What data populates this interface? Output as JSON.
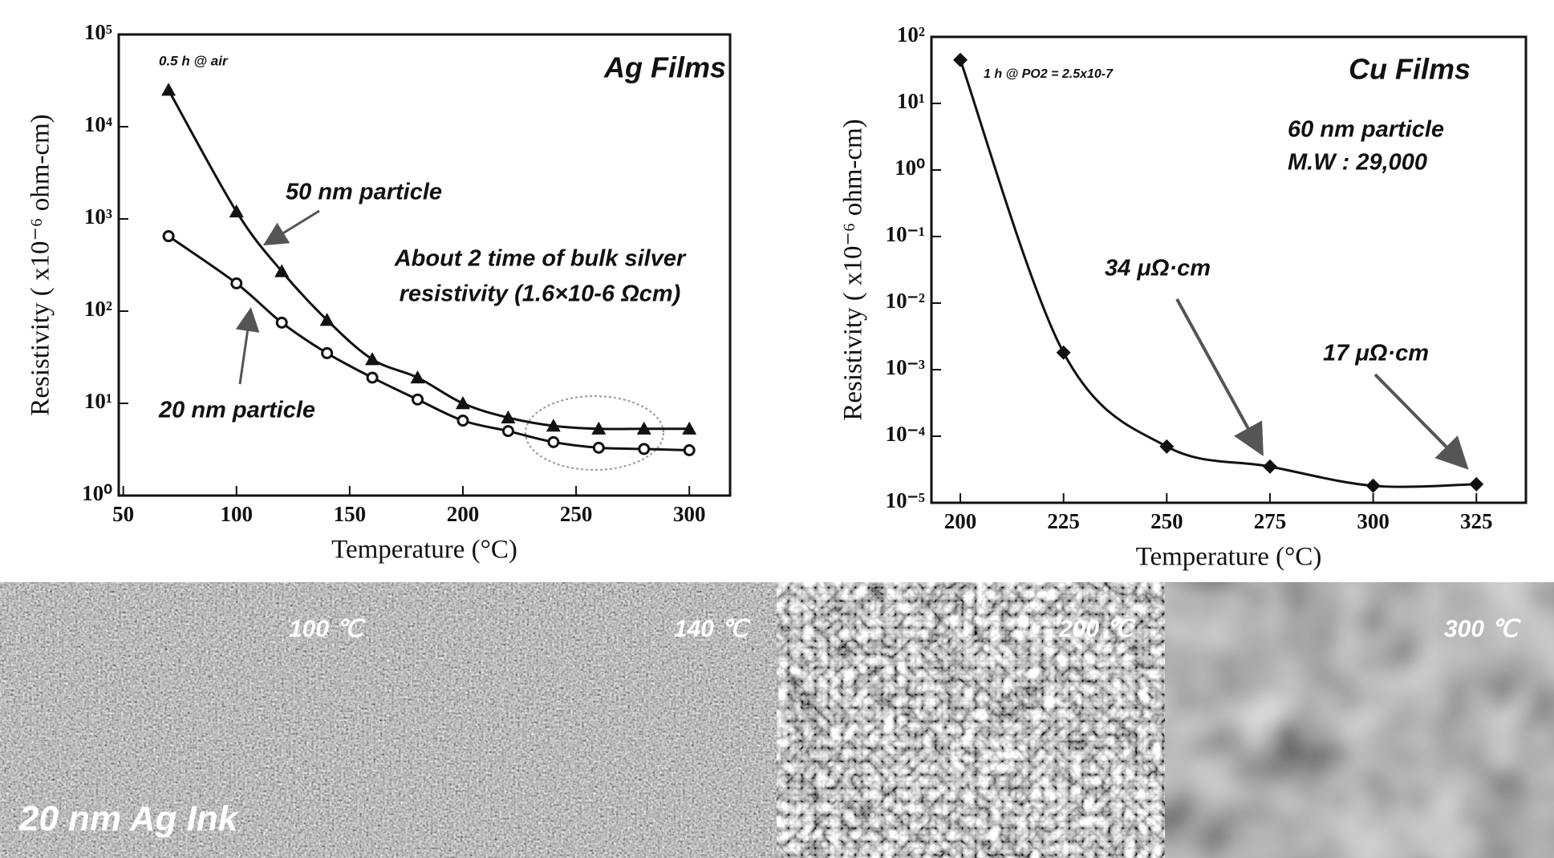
{
  "chart_data": [
    {
      "type": "line",
      "log_y": true,
      "xlabel": "Temperature (°C)",
      "ylabel": "Resistivity ( x10⁻⁶ ohm-cm)",
      "xlim": [
        48,
        318
      ],
      "xticks": [
        50,
        100,
        150,
        200,
        250,
        300
      ],
      "ylim": [
        1,
        100000
      ],
      "yticks": [
        {
          "value": 1,
          "label": "10⁰"
        },
        {
          "value": 10,
          "label": "10¹"
        },
        {
          "value": 100,
          "label": "10²"
        },
        {
          "value": 1000,
          "label": "10³"
        },
        {
          "value": 10000,
          "label": "10⁴"
        },
        {
          "value": 100000,
          "label": "10⁵"
        }
      ],
      "series": [
        {
          "name": "50 nm particle",
          "color": "#111111",
          "marker": "triangle",
          "x": [
            70,
            100,
            120,
            140,
            160,
            180,
            200,
            220,
            240,
            260,
            280,
            300
          ],
          "values": [
            25000,
            1200,
            270,
            80,
            30,
            19,
            10,
            7,
            5.7,
            5.3,
            5.3,
            5.3
          ]
        },
        {
          "name": "20 nm particle",
          "color": "#111111",
          "marker": "circle",
          "x": [
            70,
            100,
            120,
            140,
            160,
            180,
            200,
            220,
            240,
            260,
            280,
            300
          ],
          "values": [
            650,
            200,
            75,
            35,
            19,
            11,
            6.5,
            5,
            3.8,
            3.3,
            3.2,
            3.1
          ]
        }
      ],
      "annotations": [
        "0.5 h @ air",
        "Ag Films",
        "About 2 time of bulk silver",
        "resistivity (1.6×10-6 Ωcm)"
      ]
    },
    {
      "type": "line",
      "log_y": true,
      "xlabel": "Temperature (°C)",
      "ylabel": "Resistivity ( x10⁻⁶ ohm-cm)",
      "xlim": [
        193,
        337
      ],
      "xticks": [
        200,
        225,
        250,
        275,
        300,
        325
      ],
      "ylim": [
        1e-05,
        100
      ],
      "yticks": [
        {
          "value": 1e-05,
          "label": "10⁻⁵"
        },
        {
          "value": 0.0001,
          "label": "10⁻⁴"
        },
        {
          "value": 0.001,
          "label": "10⁻³"
        },
        {
          "value": 0.01,
          "label": "10⁻²"
        },
        {
          "value": 0.1,
          "label": "10⁻¹"
        },
        {
          "value": 1,
          "label": "10⁰"
        },
        {
          "value": 10,
          "label": "10¹"
        },
        {
          "value": 100,
          "label": "10²"
        }
      ],
      "series": [
        {
          "color": "#111111",
          "marker": "diamond",
          "x": [
            200,
            225,
            250,
            275,
            300,
            325
          ],
          "values": [
            45,
            0.0018,
            7e-05,
            3.5e-05,
            1.8e-05,
            1.9e-05
          ]
        }
      ],
      "annotations": [
        "1 h @ PO2 = 2.5x10-7",
        "Cu Films",
        "60 nm particle",
        "M.W : 29,000",
        "34 μΩ·cm",
        "17 μΩ·cm"
      ]
    }
  ],
  "images": {
    "labels": [
      "100 ℃",
      "140 ℃",
      "200 ℃",
      "300 ℃"
    ],
    "caption": "20 nm Ag Ink"
  }
}
